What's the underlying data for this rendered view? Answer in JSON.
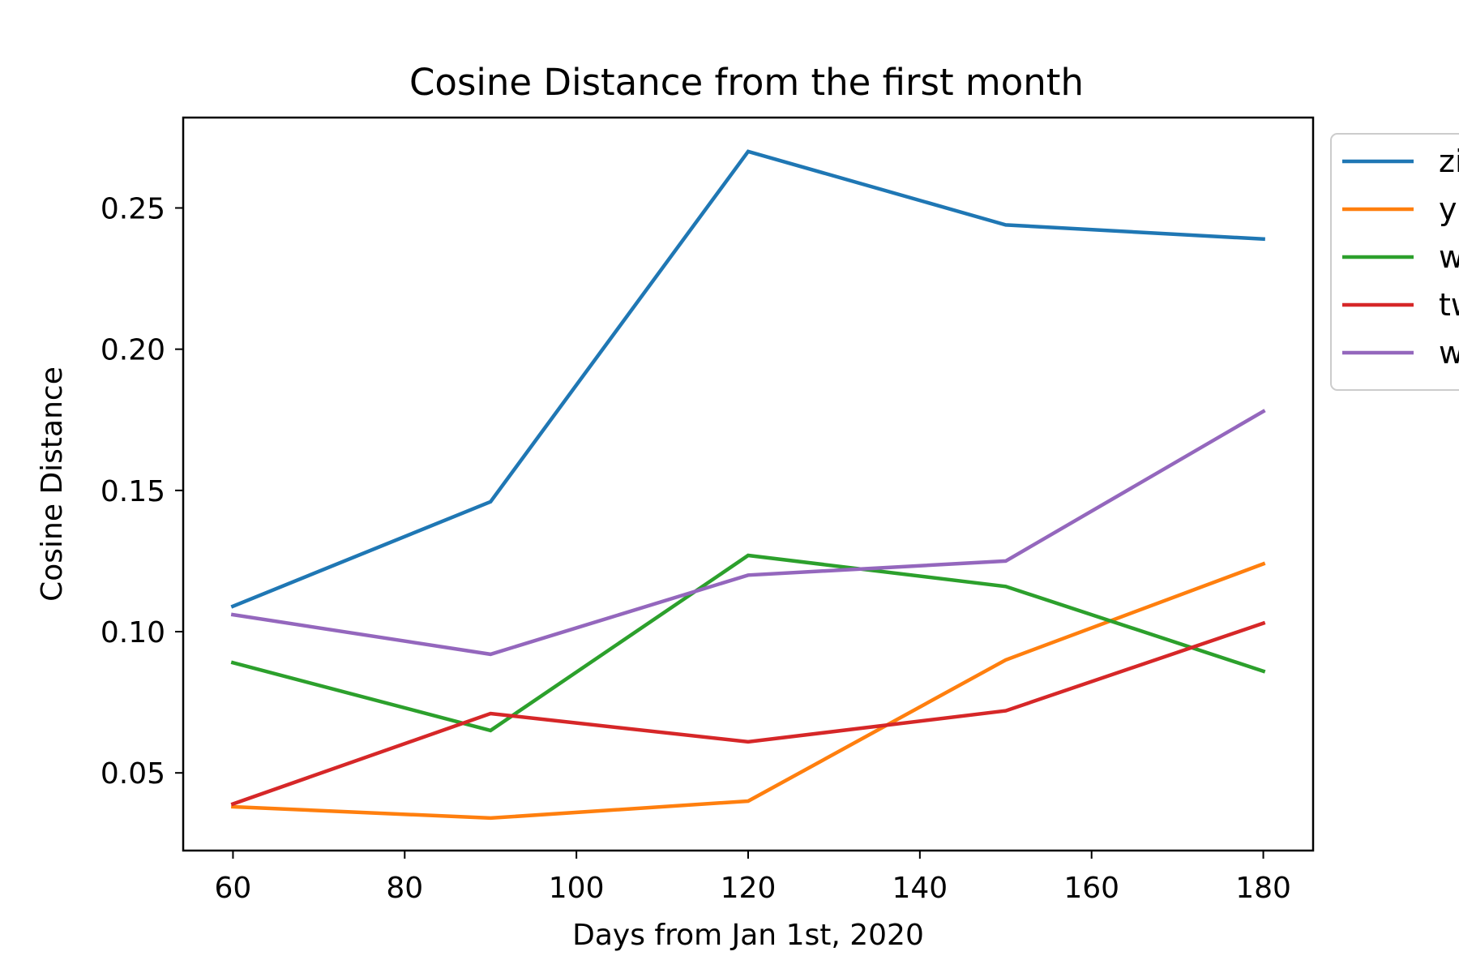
{
  "chart_data": {
    "type": "line",
    "title": "Cosine Distance from the first month",
    "xlabel": "Days from Jan 1st, 2020",
    "ylabel": "Cosine Distance",
    "x": [
      60,
      90,
      120,
      150,
      180
    ],
    "xlim": [
      54.2,
      185.8
    ],
    "ylim": [
      0.0225,
      0.282
    ],
    "xticks": [
      60,
      80,
      100,
      120,
      140,
      160,
      180
    ],
    "xtick_labels": [
      "60",
      "80",
      "100",
      "120",
      "140",
      "160",
      "180"
    ],
    "yticks": [
      0.05,
      0.1,
      0.15,
      0.2,
      0.25
    ],
    "ytick_labels": [
      "0.05",
      "0.10",
      "0.15",
      "0.20",
      "0.25"
    ],
    "grid": false,
    "legend_position": "outside-upper-right",
    "series": [
      {
        "name": "zi",
        "color": "#1f77b4",
        "values": [
          0.109,
          0.146,
          0.27,
          0.244,
          0.239
        ]
      },
      {
        "name": "y",
        "color": "#ff7f0e",
        "values": [
          0.038,
          0.034,
          0.04,
          0.09,
          0.124
        ]
      },
      {
        "name": "w",
        "color": "#2ca02c",
        "values": [
          0.089,
          0.065,
          0.127,
          0.116,
          0.086
        ]
      },
      {
        "name": "tw",
        "color": "#d62728",
        "values": [
          0.039,
          0.071,
          0.061,
          0.072,
          0.103
        ]
      },
      {
        "name": "w",
        "color": "#9467bd",
        "values": [
          0.106,
          0.092,
          0.12,
          0.125,
          0.178
        ]
      }
    ]
  }
}
